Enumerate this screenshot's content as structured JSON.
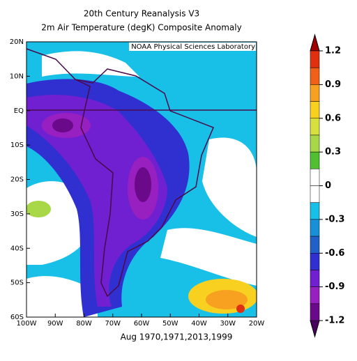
{
  "title": {
    "line1": "20th Century Reanalysis V3",
    "line2": "2m Air Temperature (degK) Composite Anomaly"
  },
  "credit": "NOAA Physical Sciences Laboratory",
  "lat_labels": [
    "20N",
    "10N",
    "EQ",
    "10S",
    "20S",
    "30S",
    "40S",
    "50S",
    "60S"
  ],
  "lon_labels": [
    "100W",
    "90W",
    "80W",
    "70W",
    "60W",
    "50W",
    "40W",
    "30W",
    "20W"
  ],
  "caption": "Aug 1970,1971,2013,1999",
  "colorbar": {
    "labels": [
      "1.2",
      "0.9",
      "0.6",
      "0.3",
      "0",
      "-0.3",
      "-0.6",
      "-0.9",
      "-1.2"
    ]
  }
}
